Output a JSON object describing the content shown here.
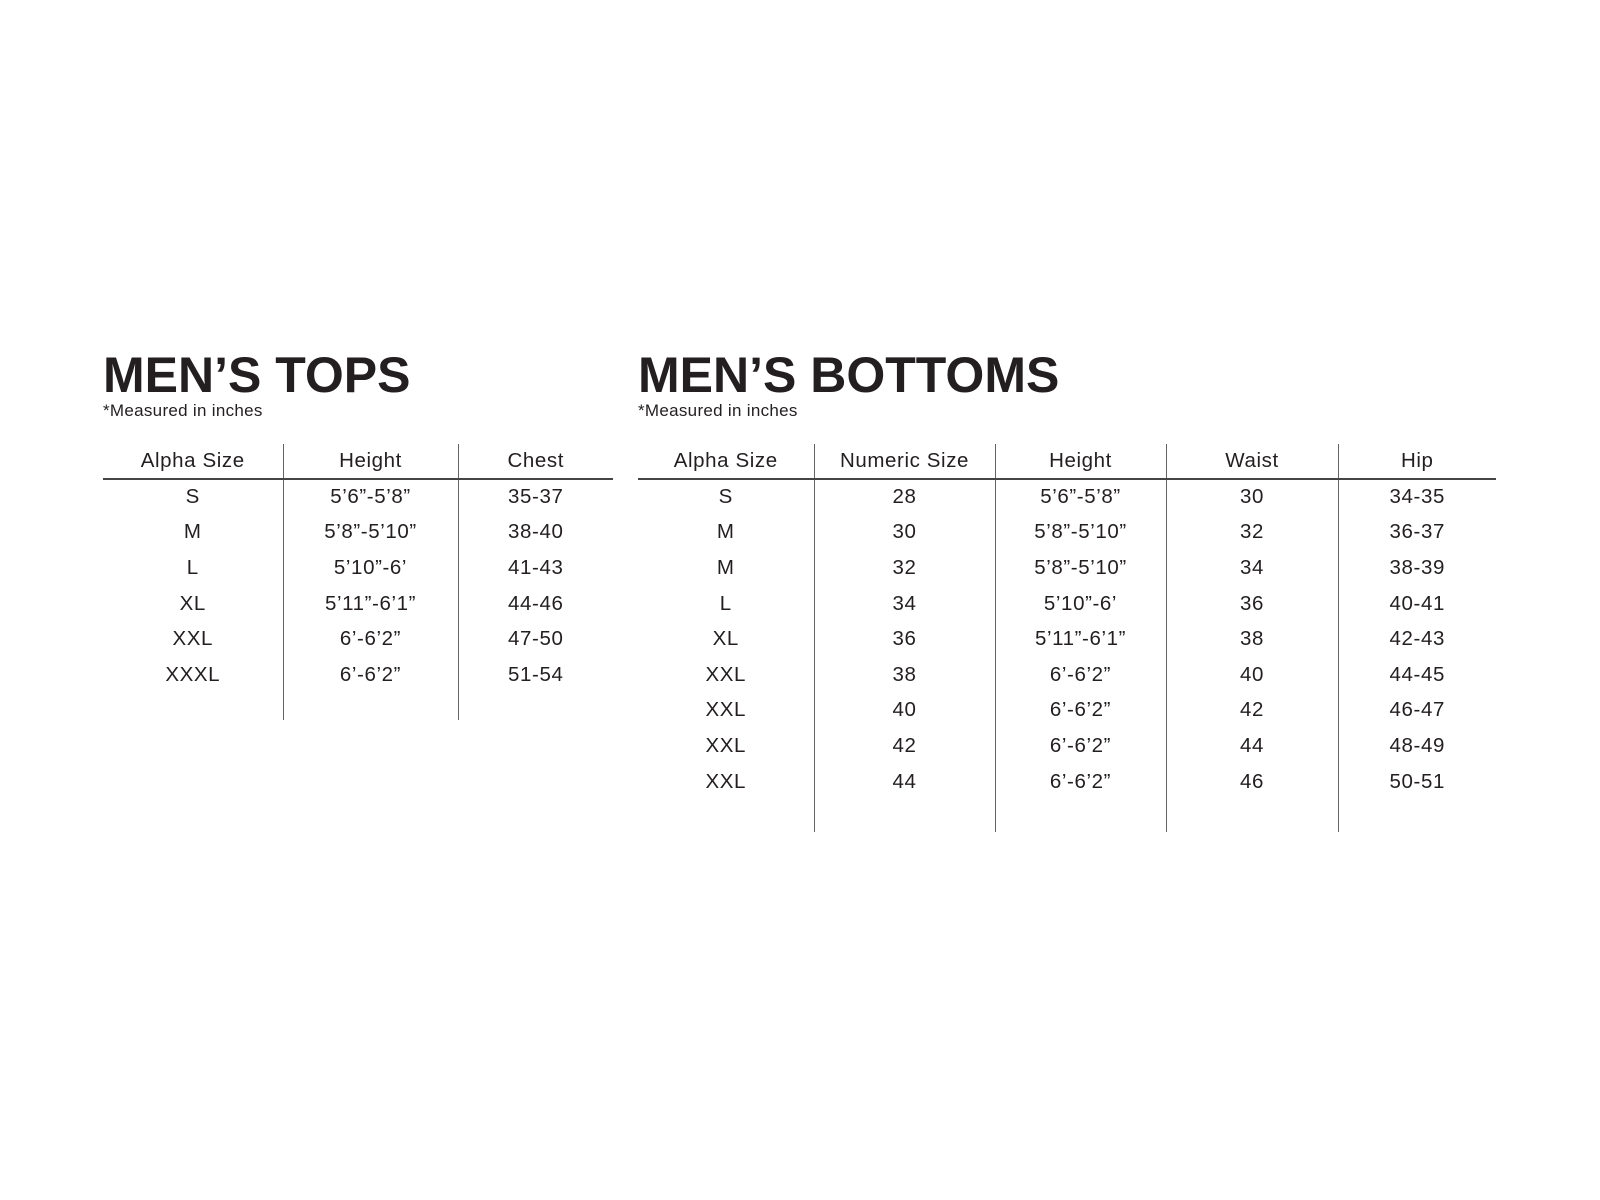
{
  "colors": {
    "text": "#231f20",
    "line_vertical": "#636466",
    "line_horizontal": "#454547",
    "background": "#ffffff"
  },
  "chart_data": [
    {
      "type": "table",
      "title": "MEN’S TOPS",
      "note": "*Measured in inches",
      "columns": [
        "Alpha Size",
        "Height",
        "Chest"
      ],
      "rows": [
        [
          "S",
          "5’6”-5’8”",
          "35-37"
        ],
        [
          "M",
          "5’8”-5’10”",
          "38-40"
        ],
        [
          "L",
          "5’10”-6’",
          "41-43"
        ],
        [
          "XL",
          "5’11”-6’1”",
          "44-46"
        ],
        [
          "XXL",
          "6’-6’2”",
          "47-50"
        ],
        [
          "XXXL",
          "6’-6’2”",
          "51-54"
        ]
      ]
    },
    {
      "type": "table",
      "title": "MEN’S BOTTOMS",
      "note": "*Measured in inches",
      "columns": [
        "Alpha Size",
        "Numeric Size",
        "Height",
        "Waist",
        "Hip"
      ],
      "rows": [
        [
          "S",
          "28",
          "5’6”-5’8”",
          "30",
          "34-35"
        ],
        [
          "M",
          "30",
          "5’8”-5’10”",
          "32",
          "36-37"
        ],
        [
          "M",
          "32",
          "5’8”-5’10”",
          "34",
          "38-39"
        ],
        [
          "L",
          "34",
          "5’10”-6’",
          "36",
          "40-41"
        ],
        [
          "XL",
          "36",
          "5’11”-6’1”",
          "38",
          "42-43"
        ],
        [
          "XXL",
          "38",
          "6’-6’2”",
          "40",
          "44-45"
        ],
        [
          "XXL",
          "40",
          "6’-6’2”",
          "42",
          "46-47"
        ],
        [
          "XXL",
          "42",
          "6’-6’2”",
          "44",
          "48-49"
        ],
        [
          "XXL",
          "44",
          "6’-6’2”",
          "46",
          "50-51"
        ]
      ]
    }
  ]
}
